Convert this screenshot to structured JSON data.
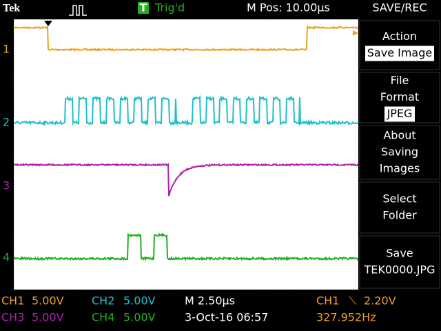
{
  "header": {
    "brand": "Tek",
    "trigger_icon": "T",
    "trigger_status": "Trig'd",
    "position": "M Pos: 10.00µs",
    "menu_title": "SAVE/REC"
  },
  "channel_markers": [
    "1",
    "2",
    "3",
    "4"
  ],
  "menu": [
    {
      "lines": [
        "Action"
      ],
      "value": "Save Image"
    },
    {
      "lines": [
        "File",
        "Format"
      ],
      "value": "JPEG"
    },
    {
      "lines": [
        "About",
        "Saving",
        "Images"
      ]
    },
    {
      "lines": [
        "Select",
        "Folder"
      ]
    },
    {
      "lines": [
        "Save"
      ],
      "value": "TEK0000.JPG"
    }
  ],
  "footer": {
    "ch1": "CH1",
    "ch1_scale": "5.00V",
    "ch2": "CH2",
    "ch2_scale": "5.00V",
    "timebase": "M 2.50µs",
    "trigger_source": "CH1",
    "trigger_slope": "⟍",
    "trigger_level": "2.20V",
    "ch3": "CH3",
    "ch3_scale": "5.00V",
    "ch4": "CH4",
    "ch4_scale": "5.00V",
    "date_time": "3-Oct-16 06:57",
    "frequency": "327.952Hz"
  }
}
